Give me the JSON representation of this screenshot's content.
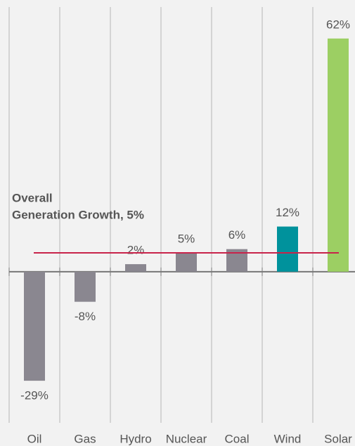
{
  "chart_data": {
    "type": "bar",
    "categories": [
      "Oil",
      "Gas",
      "Hydro",
      "Nuclear",
      "Coal",
      "Wind",
      "Solar"
    ],
    "values": [
      -29,
      -8,
      2,
      5,
      6,
      12,
      62
    ],
    "value_labels": [
      "-29%",
      "-8%",
      "2%",
      "5%",
      "6%",
      "12%",
      "62%"
    ],
    "colors": [
      "#8a8790",
      "#8a8790",
      "#8a8790",
      "#8a8790",
      "#8a8790",
      "#00929c",
      "#9ccf63"
    ],
    "ylim": [
      -40,
      70
    ],
    "reference_line": {
      "value": 5,
      "color": "#c8234a",
      "annotation": [
        "Overall",
        "Generation Growth, 5%"
      ]
    },
    "grid": true
  }
}
